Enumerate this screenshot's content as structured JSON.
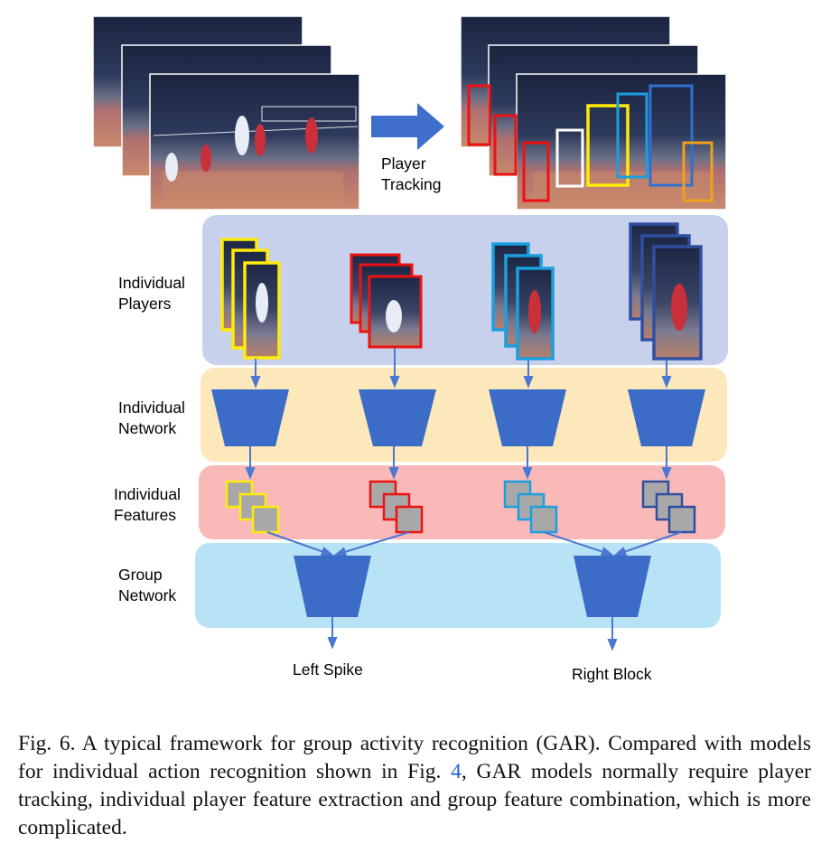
{
  "tracking_label_line1": "Player",
  "tracking_label_line2": "Tracking",
  "stages": [
    {
      "line1": "Individual",
      "line2": "Players"
    },
    {
      "line1": "Individual",
      "line2": "Network"
    },
    {
      "line1": "Individual",
      "line2": "Features"
    },
    {
      "line1": "Group",
      "line2": "Network"
    }
  ],
  "players": [
    {
      "color": "#ffeb0a"
    },
    {
      "color": "#ee1111"
    },
    {
      "color": "#1a9fe0"
    },
    {
      "color": "#2f4fa0"
    }
  ],
  "outputs": [
    "Left Spike",
    "Right Block"
  ],
  "colors": {
    "band_players": "#c7d1ec",
    "band_network": "#fce8ba",
    "band_features": "#f9b9b9",
    "band_group": "#b8e2f5",
    "network_blue": "#3b6cc7",
    "arrow_blue": "#4a78d2",
    "feature_gray": "#a8a8a8",
    "tracking_arrow": "#3d6fcb"
  },
  "caption": {
    "prefix": "Fig. 6.  A typical framework for group activity recognition (GAR). Compared with models for individual action recognition shown in Fig. ",
    "ref": "4",
    "suffix": ", GAR models normally require player tracking, individual player feature extraction and group feature combination, which is more complicated."
  }
}
